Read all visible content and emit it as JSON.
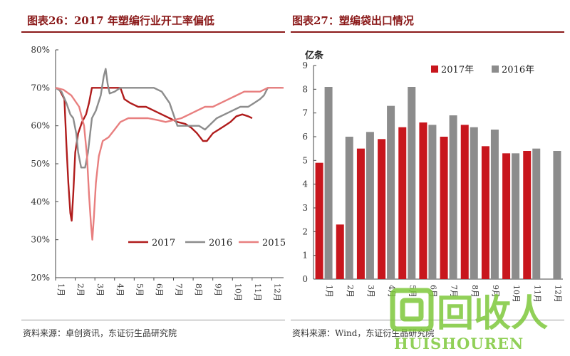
{
  "left": {
    "title": "图表26：2017 年塑编行业开工率偏低",
    "source": "资料来源：卓创资讯，东证衍生品研究院",
    "chart_data": {
      "type": "line",
      "ylim": [
        20,
        80
      ],
      "yticks": [
        "20%",
        "30%",
        "40%",
        "50%",
        "60%",
        "70%",
        "80%"
      ],
      "ytick_values": [
        20,
        30,
        40,
        50,
        60,
        70,
        80
      ],
      "xticks": [
        "1月",
        "2月",
        "3月",
        "4月",
        "5月",
        "6月",
        "7月",
        "8月",
        "9月",
        "10月",
        "11月",
        "12月"
      ],
      "xlim": [
        1,
        12.6
      ],
      "legend": "bottom-right",
      "grid": false,
      "series": [
        {
          "name": "2017",
          "color": "#b01c1c",
          "points": [
            [
              1,
              70
            ],
            [
              1.2,
              69.5
            ],
            [
              1.45,
              67
            ],
            [
              1.55,
              55
            ],
            [
              1.65,
              45
            ],
            [
              1.75,
              37
            ],
            [
              1.82,
              35
            ],
            [
              1.9,
              42
            ],
            [
              2.0,
              53
            ],
            [
              2.15,
              58
            ],
            [
              2.35,
              61
            ],
            [
              2.55,
              63
            ],
            [
              2.7,
              66
            ],
            [
              2.85,
              70
            ],
            [
              3.2,
              70
            ],
            [
              3.6,
              70
            ],
            [
              4.0,
              70
            ],
            [
              4.3,
              70
            ],
            [
              4.5,
              67
            ],
            [
              4.8,
              66
            ],
            [
              5.2,
              65
            ],
            [
              5.6,
              65
            ],
            [
              6.0,
              64
            ],
            [
              6.4,
              63
            ],
            [
              6.8,
              62
            ],
            [
              7.2,
              61
            ],
            [
              7.6,
              60.5
            ],
            [
              7.9,
              59.5
            ],
            [
              8.2,
              58
            ],
            [
              8.5,
              56
            ],
            [
              8.7,
              56
            ],
            [
              9.0,
              58
            ],
            [
              9.3,
              59
            ],
            [
              9.6,
              60
            ],
            [
              9.9,
              61
            ],
            [
              10.2,
              62.5
            ],
            [
              10.5,
              63
            ],
            [
              10.8,
              62.5
            ],
            [
              11.0,
              62
            ]
          ]
        },
        {
          "name": "2016",
          "color": "#8c8c8c",
          "points": [
            [
              1,
              70
            ],
            [
              1.3,
              69
            ],
            [
              1.55,
              66
            ],
            [
              1.75,
              63
            ],
            [
              1.9,
              62
            ],
            [
              2.05,
              58
            ],
            [
              2.15,
              53
            ],
            [
              2.3,
              49
            ],
            [
              2.5,
              49
            ],
            [
              2.65,
              53
            ],
            [
              2.85,
              62
            ],
            [
              3.05,
              64
            ],
            [
              3.3,
              68
            ],
            [
              3.45,
              73
            ],
            [
              3.55,
              75
            ],
            [
              3.65,
              71
            ],
            [
              3.75,
              68.5
            ],
            [
              4.0,
              69
            ],
            [
              4.3,
              70
            ],
            [
              4.8,
              70
            ],
            [
              5.5,
              70
            ],
            [
              6.0,
              70
            ],
            [
              6.4,
              69
            ],
            [
              6.8,
              66
            ],
            [
              7.0,
              63
            ],
            [
              7.2,
              60
            ],
            [
              7.5,
              60
            ],
            [
              7.9,
              60
            ],
            [
              8.3,
              60
            ],
            [
              8.6,
              59
            ],
            [
              8.9,
              60.5
            ],
            [
              9.2,
              62
            ],
            [
              9.6,
              63
            ],
            [
              10.0,
              64
            ],
            [
              10.4,
              65
            ],
            [
              10.8,
              65
            ],
            [
              11.1,
              66
            ],
            [
              11.4,
              67
            ],
            [
              11.6,
              68
            ],
            [
              11.8,
              70
            ],
            [
              12.0,
              70
            ],
            [
              12.5,
              70
            ]
          ]
        },
        {
          "name": "2015",
          "color": "#e87f7f",
          "points": [
            [
              1,
              70
            ],
            [
              1.4,
              69.5
            ],
            [
              1.8,
              68
            ],
            [
              2.2,
              65
            ],
            [
              2.45,
              60
            ],
            [
              2.6,
              52
            ],
            [
              2.7,
              42
            ],
            [
              2.8,
              34
            ],
            [
              2.87,
              30
            ],
            [
              2.95,
              36
            ],
            [
              3.05,
              45
            ],
            [
              3.2,
              52
            ],
            [
              3.4,
              56
            ],
            [
              3.7,
              57
            ],
            [
              4.0,
              59
            ],
            [
              4.3,
              61
            ],
            [
              4.7,
              62
            ],
            [
              5.2,
              62
            ],
            [
              5.7,
              62
            ],
            [
              6.2,
              61.5
            ],
            [
              6.6,
              61
            ],
            [
              7.0,
              61.5
            ],
            [
              7.4,
              62
            ],
            [
              7.8,
              63
            ],
            [
              8.2,
              64
            ],
            [
              8.6,
              65
            ],
            [
              9.0,
              65
            ],
            [
              9.4,
              66
            ],
            [
              9.8,
              67
            ],
            [
              10.2,
              68
            ],
            [
              10.6,
              69
            ],
            [
              11.0,
              69
            ],
            [
              11.4,
              69
            ],
            [
              11.8,
              70
            ],
            [
              12.2,
              70
            ],
            [
              12.6,
              70
            ]
          ]
        }
      ]
    }
  },
  "right": {
    "title": "图表27：塑编袋出口情况",
    "source": "资料来源：Wind，东证衍生品研究院",
    "chart_data": {
      "type": "bar",
      "ylabel": "亿条",
      "ylim": [
        0,
        9
      ],
      "yticks": [
        "0",
        "1",
        "2",
        "3",
        "4",
        "5",
        "6",
        "7",
        "8",
        "9"
      ],
      "categories": [
        "1月",
        "2月",
        "3月",
        "4月",
        "5月",
        "6月",
        "7月",
        "8月",
        "9月",
        "10月",
        "11月",
        "12月"
      ],
      "legend": "top-right",
      "grid": false,
      "series": [
        {
          "name": "2017年",
          "color": "#c8161d",
          "values": [
            4.9,
            2.3,
            5.5,
            5.9,
            6.4,
            6.6,
            6.0,
            6.5,
            5.6,
            5.3,
            5.4,
            null
          ]
        },
        {
          "name": "2016年",
          "color": "#8c8c8c",
          "values": [
            8.1,
            6.0,
            6.2,
            7.3,
            8.1,
            6.5,
            6.9,
            6.4,
            6.3,
            5.3,
            5.5,
            5.4
          ]
        }
      ]
    }
  },
  "watermark": {
    "logo_text": "回收人",
    "brand_text": "HUISHOUREN",
    "color": "#7ec83c"
  }
}
